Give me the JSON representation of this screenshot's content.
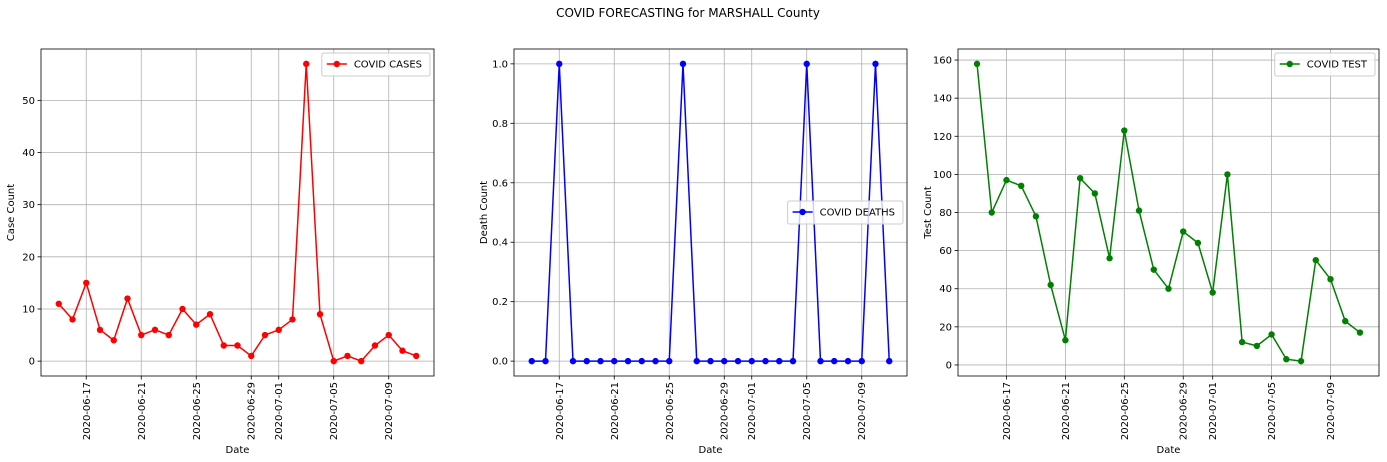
{
  "title": "COVID FORECASTING for MARSHALL County",
  "chart_data": [
    {
      "type": "line",
      "xlabel": "Date",
      "ylabel": "Case Count",
      "legend": "upper right",
      "grid": true,
      "x": [
        "2020-06-15",
        "2020-06-16",
        "2020-06-17",
        "2020-06-18",
        "2020-06-19",
        "2020-06-20",
        "2020-06-21",
        "2020-06-22",
        "2020-06-23",
        "2020-06-24",
        "2020-06-25",
        "2020-06-26",
        "2020-06-27",
        "2020-06-28",
        "2020-06-29",
        "2020-06-30",
        "2020-07-01",
        "2020-07-02",
        "2020-07-03",
        "2020-07-04",
        "2020-07-05",
        "2020-07-06",
        "2020-07-07",
        "2020-07-08",
        "2020-07-09",
        "2020-07-10",
        "2020-07-11"
      ],
      "series": [
        {
          "name": "COVID CASES",
          "color": "#ff0000",
          "values": [
            11,
            8,
            15,
            6,
            4,
            12,
            5,
            6,
            5,
            10,
            7,
            9,
            3,
            3,
            1,
            5,
            6,
            8,
            57,
            9,
            0,
            1,
            0,
            3,
            5,
            2,
            1
          ]
        }
      ],
      "xlim": [
        "2020-06-13T17:00",
        "2020-07-12T07:00"
      ],
      "xticks": [
        "2020-06-17",
        "2020-06-21",
        "2020-06-25",
        "2020-06-29",
        "2020-07-01",
        "2020-07-05",
        "2020-07-09"
      ],
      "ylim": [
        -2.85,
        59.85
      ],
      "yticks": [
        0,
        10,
        20,
        30,
        40,
        50
      ]
    },
    {
      "type": "line",
      "xlabel": "Date",
      "ylabel": "Death Count",
      "legend": "center right",
      "grid": true,
      "x": [
        "2020-06-15",
        "2020-06-16",
        "2020-06-17",
        "2020-06-18",
        "2020-06-19",
        "2020-06-20",
        "2020-06-21",
        "2020-06-22",
        "2020-06-23",
        "2020-06-24",
        "2020-06-25",
        "2020-06-26",
        "2020-06-27",
        "2020-06-28",
        "2020-06-29",
        "2020-06-30",
        "2020-07-01",
        "2020-07-02",
        "2020-07-03",
        "2020-07-04",
        "2020-07-05",
        "2020-07-06",
        "2020-07-07",
        "2020-07-08",
        "2020-07-09",
        "2020-07-10",
        "2020-07-11"
      ],
      "series": [
        {
          "name": "COVID DEATHS",
          "color": "#0000ff",
          "values": [
            0,
            0,
            1,
            0,
            0,
            0,
            0,
            0,
            0,
            0,
            0,
            1,
            0,
            0,
            0,
            0,
            0,
            0,
            0,
            0,
            1,
            0,
            0,
            0,
            0,
            1,
            0
          ]
        }
      ],
      "xlim": [
        "2020-06-13T17:00",
        "2020-07-12T07:00"
      ],
      "xticks": [
        "2020-06-17",
        "2020-06-21",
        "2020-06-25",
        "2020-06-29",
        "2020-07-01",
        "2020-07-05",
        "2020-07-09"
      ],
      "ylim": [
        -0.05,
        1.05
      ],
      "yticks": [
        {
          "value": 0,
          "label": "0.0"
        },
        0.2,
        0.4,
        0.6,
        0.8,
        {
          "value": 1,
          "label": "1.0"
        }
      ]
    },
    {
      "type": "line",
      "xlabel": "Date",
      "ylabel": "Test Count",
      "legend": "upper right",
      "grid": true,
      "x": [
        "2020-06-15",
        "2020-06-16",
        "2020-06-17",
        "2020-06-18",
        "2020-06-19",
        "2020-06-20",
        "2020-06-21",
        "2020-06-22",
        "2020-06-23",
        "2020-06-24",
        "2020-06-25",
        "2020-06-26",
        "2020-06-27",
        "2020-06-28",
        "2020-06-29",
        "2020-06-30",
        "2020-07-01",
        "2020-07-02",
        "2020-07-03",
        "2020-07-04",
        "2020-07-05",
        "2020-07-06",
        "2020-07-07",
        "2020-07-08",
        "2020-07-09",
        "2020-07-10",
        "2020-07-11"
      ],
      "series": [
        {
          "name": "COVID TEST",
          "color": "#008000",
          "values": [
            158,
            80,
            97,
            94,
            78,
            42,
            13,
            98,
            90,
            56,
            123,
            81,
            50,
            40,
            70,
            64,
            38,
            100,
            12,
            10,
            16,
            3,
            2,
            55,
            45,
            23,
            17
          ]
        }
      ],
      "xlim": [
        "2020-06-13T17:00",
        "2020-07-12T07:00"
      ],
      "xticks": [
        "2020-06-17",
        "2020-06-21",
        "2020-06-25",
        "2020-06-29",
        "2020-07-01",
        "2020-07-05",
        "2020-07-09"
      ],
      "ylim": [
        -5.8,
        165.8
      ],
      "yticks": [
        0,
        20,
        40,
        60,
        80,
        100,
        120,
        140,
        160
      ]
    }
  ]
}
